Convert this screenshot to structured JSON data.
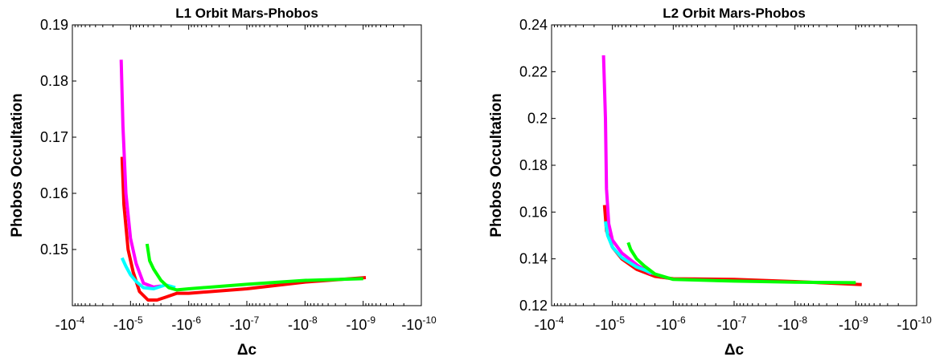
{
  "chart_data": [
    {
      "type": "line",
      "title": "L1 Orbit Mars-Phobos",
      "xlabel": "Δc",
      "ylabel": "Phobos Occultation",
      "x_scale": "log-negative",
      "xlim": [
        -0.0001,
        -1e-10
      ],
      "ylim": [
        0.14,
        0.19
      ],
      "grid": false,
      "x_tick_exponents": [
        "-4",
        "-5",
        "-6",
        "-7",
        "-8",
        "-9",
        "-10"
      ],
      "y_tick_labels": [
        "0.15",
        "0.16",
        "0.17",
        "0.18",
        "0.19"
      ],
      "y_ticks": [
        0.15,
        0.16,
        0.17,
        0.18,
        0.19
      ],
      "series": [
        {
          "color": "#ff0000",
          "points": [
            [
              -1.4e-05,
              0.1665
            ],
            [
              -1.3e-05,
              0.158
            ],
            [
              -1.1e-05,
              0.15
            ],
            [
              -9e-06,
              0.146
            ],
            [
              -7e-06,
              0.1425
            ],
            [
              -5e-06,
              0.141
            ],
            [
              -3.5e-06,
              0.141
            ],
            [
              -2.5e-06,
              0.1415
            ],
            [
              -1.6e-06,
              0.1422
            ],
            [
              -1e-06,
              0.1422
            ],
            [
              -1e-07,
              0.143
            ],
            [
              -1e-08,
              0.1442
            ],
            [
              -9e-10,
              0.145
            ]
          ]
        },
        {
          "color": "#ff00ff",
          "points": [
            [
              -1.45e-05,
              0.1838
            ],
            [
              -1.35e-05,
              0.172
            ],
            [
              -1.2e-05,
              0.16
            ],
            [
              -1e-05,
              0.152
            ],
            [
              -8e-06,
              0.1475
            ],
            [
              -6e-06,
              0.144
            ],
            [
              -4e-06,
              0.1433
            ],
            [
              -3e-06,
              0.1435
            ]
          ]
        },
        {
          "color": "#00ffff",
          "points": [
            [
              -1.4e-05,
              0.1485
            ],
            [
              -1.2e-05,
              0.147
            ],
            [
              -1e-05,
              0.1455
            ],
            [
              -8e-06,
              0.1443
            ],
            [
              -6e-06,
              0.1432
            ],
            [
              -4e-06,
              0.143
            ],
            [
              -2.5e-06,
              0.1437
            ],
            [
              -1.7e-06,
              0.1432
            ]
          ]
        },
        {
          "color": "#00ff00",
          "points": [
            [
              -5.2e-06,
              0.151
            ],
            [
              -4.7e-06,
              0.148
            ],
            [
              -4e-06,
              0.1465
            ],
            [
              -3e-06,
              0.1445
            ],
            [
              -2.2e-06,
              0.1432
            ],
            [
              -1.6e-06,
              0.1428
            ],
            [
              -1e-06,
              0.143
            ],
            [
              -1e-07,
              0.1438
            ],
            [
              -1e-08,
              0.1445
            ],
            [
              -1e-09,
              0.1448
            ]
          ]
        }
      ]
    },
    {
      "type": "line",
      "title": "L2 Orbit Mars-Phobos",
      "xlabel": "Δc",
      "ylabel": "Phobos Occultation",
      "x_scale": "log-negative",
      "xlim": [
        -0.0001,
        -1e-10
      ],
      "ylim": [
        0.12,
        0.24
      ],
      "grid": false,
      "x_tick_exponents": [
        "-4",
        "-5",
        "-6",
        "-7",
        "-8",
        "-9",
        "-10"
      ],
      "y_tick_labels": [
        "0.12",
        "0.14",
        "0.16",
        "0.18",
        "0.2",
        "0.22",
        "0.24"
      ],
      "y_ticks": [
        0.12,
        0.14,
        0.16,
        0.18,
        0.2,
        0.22,
        0.24
      ],
      "series": [
        {
          "color": "#ff0000",
          "points": [
            [
              -1.35e-05,
              0.163
            ],
            [
              -1.25e-05,
              0.152
            ],
            [
              -1e-05,
              0.145
            ],
            [
              -7e-06,
              0.14
            ],
            [
              -4e-06,
              0.1355
            ],
            [
              -2e-06,
              0.1325
            ],
            [
              -1e-06,
              0.1315
            ],
            [
              -1e-07,
              0.1312
            ],
            [
              -1e-08,
              0.1303
            ],
            [
              -8e-10,
              0.129
            ]
          ]
        },
        {
          "color": "#ff00ff",
          "points": [
            [
              -1.4e-05,
              0.227
            ],
            [
              -1.3e-05,
              0.2
            ],
            [
              -1.25e-05,
              0.17
            ],
            [
              -1.15e-05,
              0.155
            ],
            [
              -1e-05,
              0.148
            ],
            [
              -7e-06,
              0.1425
            ],
            [
              -4e-06,
              0.1375
            ],
            [
              -2.3e-06,
              0.1335
            ]
          ]
        },
        {
          "color": "#00ffff",
          "points": [
            [
              -1.3e-05,
              0.156
            ],
            [
              -1.2e-05,
              0.15
            ],
            [
              -1e-05,
              0.145
            ],
            [
              -7e-06,
              0.1405
            ],
            [
              -4e-06,
              0.1365
            ],
            [
              -2e-06,
              0.1335
            ],
            [
              -1.3e-06,
              0.132
            ]
          ]
        },
        {
          "color": "#00ff00",
          "points": [
            [
              -5.5e-06,
              0.147
            ],
            [
              -5e-06,
              0.144
            ],
            [
              -4e-06,
              0.14
            ],
            [
              -3e-06,
              0.137
            ],
            [
              -2e-06,
              0.1335
            ],
            [
              -1e-06,
              0.1312
            ],
            [
              -1e-07,
              0.1305
            ],
            [
              -1e-08,
              0.13
            ],
            [
              -1e-09,
              0.1298
            ]
          ]
        }
      ]
    }
  ]
}
